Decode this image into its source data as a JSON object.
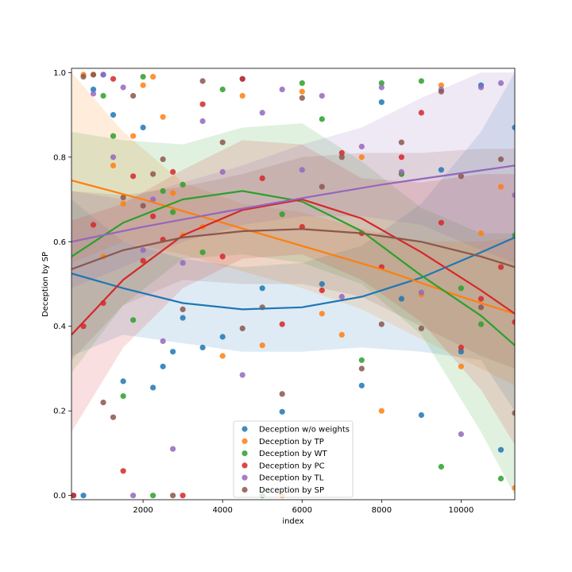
{
  "chart_data": {
    "type": "scatter",
    "xlabel": "index",
    "ylabel": "Deception by SP",
    "xlim": [
      200,
      11350
    ],
    "ylim": [
      -0.01,
      1.01
    ],
    "xticks": [
      2000,
      4000,
      6000,
      8000,
      10000
    ],
    "xtick_labels": [
      "2000",
      "4000",
      "6000",
      "8000",
      "10000"
    ],
    "yticks": [
      0.0,
      0.2,
      0.4,
      0.6,
      0.8,
      1.0
    ],
    "ytick_labels": [
      "0.0",
      "0.2",
      "0.4",
      "0.6",
      "0.8",
      "1.0"
    ],
    "legend_placement": "lower center",
    "series": [
      {
        "name": "Deception w/o weights",
        "color": "#1f77b4",
        "fit": [
          [
            200,
            0.525
          ],
          [
            1500,
            0.49
          ],
          [
            3000,
            0.455
          ],
          [
            4500,
            0.44
          ],
          [
            6000,
            0.445
          ],
          [
            7500,
            0.47
          ],
          [
            9000,
            0.515
          ],
          [
            10500,
            0.575
          ],
          [
            11350,
            0.61
          ]
        ],
        "band": [
          [
            200,
            0.33,
            0.7
          ],
          [
            1500,
            0.38,
            0.6
          ],
          [
            3000,
            0.36,
            0.56
          ],
          [
            4500,
            0.34,
            0.54
          ],
          [
            6000,
            0.34,
            0.55
          ],
          [
            7500,
            0.35,
            0.59
          ],
          [
            9000,
            0.34,
            0.69
          ],
          [
            10500,
            0.32,
            0.86
          ],
          [
            11350,
            0.2,
            1.0
          ]
        ],
        "points": [
          [
            250,
            0.0
          ],
          [
            500,
            0.0
          ],
          [
            750,
            0.96
          ],
          [
            1000,
            0.995
          ],
          [
            1250,
            0.9
          ],
          [
            1500,
            0.27
          ],
          [
            2000,
            0.87
          ],
          [
            2250,
            0.255
          ],
          [
            2500,
            0.305
          ],
          [
            2750,
            0.34
          ],
          [
            3000,
            0.42
          ],
          [
            3500,
            0.35
          ],
          [
            4000,
            0.375
          ],
          [
            4500,
            0.985
          ],
          [
            5000,
            0.49
          ],
          [
            5500,
            0.198
          ],
          [
            6500,
            0.5
          ],
          [
            7500,
            0.26
          ],
          [
            8000,
            0.93
          ],
          [
            8500,
            0.465
          ],
          [
            9000,
            0.19
          ],
          [
            9500,
            0.77
          ],
          [
            10000,
            0.34
          ],
          [
            10500,
            0.97
          ],
          [
            11000,
            0.108
          ],
          [
            11350,
            0.87
          ]
        ]
      },
      {
        "name": "Deception by TP",
        "color": "#ff7f0e",
        "fit": [
          [
            200,
            0.745
          ],
          [
            2000,
            0.7
          ],
          [
            4000,
            0.645
          ],
          [
            6000,
            0.59
          ],
          [
            8000,
            0.535
          ],
          [
            10000,
            0.47
          ],
          [
            11350,
            0.43
          ]
        ],
        "band": [
          [
            200,
            0.55,
            1.0
          ],
          [
            1500,
            0.6,
            0.86
          ],
          [
            3000,
            0.57,
            0.74
          ],
          [
            4500,
            0.53,
            0.69
          ],
          [
            6000,
            0.49,
            0.67
          ],
          [
            7500,
            0.44,
            0.63
          ],
          [
            9000,
            0.37,
            0.6
          ],
          [
            10500,
            0.3,
            0.6
          ],
          [
            11350,
            0.26,
            0.61
          ]
        ],
        "points": [
          [
            500,
            0.995
          ],
          [
            750,
            0.995
          ],
          [
            1000,
            0.565
          ],
          [
            1250,
            0.78
          ],
          [
            1500,
            0.69
          ],
          [
            1750,
            0.85
          ],
          [
            2000,
            0.97
          ],
          [
            2250,
            0.99
          ],
          [
            2500,
            0.895
          ],
          [
            2750,
            0.715
          ],
          [
            3000,
            0.615
          ],
          [
            3500,
            0.635
          ],
          [
            4000,
            0.33
          ],
          [
            4500,
            0.945
          ],
          [
            5000,
            0.355
          ],
          [
            5500,
            0.0
          ],
          [
            6000,
            0.955
          ],
          [
            6500,
            0.43
          ],
          [
            7000,
            0.38
          ],
          [
            7500,
            0.8
          ],
          [
            8000,
            0.2
          ],
          [
            8500,
            0.76
          ],
          [
            9000,
            0.475
          ],
          [
            9500,
            0.97
          ],
          [
            10000,
            0.305
          ],
          [
            10500,
            0.62
          ],
          [
            11000,
            0.73
          ],
          [
            11350,
            0.018
          ]
        ]
      },
      {
        "name": "Deception by WT",
        "color": "#2ca02c",
        "fit": [
          [
            200,
            0.565
          ],
          [
            1500,
            0.645
          ],
          [
            3000,
            0.7
          ],
          [
            4500,
            0.72
          ],
          [
            6000,
            0.695
          ],
          [
            7500,
            0.625
          ],
          [
            9000,
            0.52
          ],
          [
            10500,
            0.425
          ],
          [
            11350,
            0.355
          ]
        ],
        "band": [
          [
            200,
            0.29,
            0.86
          ],
          [
            1500,
            0.45,
            0.84
          ],
          [
            3000,
            0.56,
            0.83
          ],
          [
            4500,
            0.57,
            0.87
          ],
          [
            6000,
            0.55,
            0.88
          ],
          [
            7500,
            0.5,
            0.79
          ],
          [
            9000,
            0.38,
            0.68
          ],
          [
            10500,
            0.15,
            0.62
          ],
          [
            11350,
            0.0,
            0.62
          ]
        ],
        "points": [
          [
            1000,
            0.945
          ],
          [
            1250,
            0.85
          ],
          [
            1500,
            0.235
          ],
          [
            1750,
            0.415
          ],
          [
            2000,
            0.99
          ],
          [
            2250,
            0.0
          ],
          [
            2500,
            0.72
          ],
          [
            2750,
            0.67
          ],
          [
            3000,
            0.735
          ],
          [
            3500,
            0.575
          ],
          [
            4000,
            0.96
          ],
          [
            5000,
            0.0
          ],
          [
            5500,
            0.665
          ],
          [
            6000,
            0.975
          ],
          [
            6500,
            0.89
          ],
          [
            7500,
            0.32
          ],
          [
            8000,
            0.975
          ],
          [
            8500,
            0.76
          ],
          [
            9000,
            0.98
          ],
          [
            9500,
            0.068
          ],
          [
            10000,
            0.49
          ],
          [
            10500,
            0.405
          ],
          [
            11000,
            0.04
          ],
          [
            11350,
            0.615
          ]
        ]
      },
      {
        "name": "Deception by PC",
        "color": "#d62728",
        "fit": [
          [
            200,
            0.38
          ],
          [
            1500,
            0.51
          ],
          [
            3000,
            0.615
          ],
          [
            4500,
            0.675
          ],
          [
            6000,
            0.7
          ],
          [
            7500,
            0.655
          ],
          [
            9000,
            0.575
          ],
          [
            10500,
            0.485
          ],
          [
            11350,
            0.43
          ]
        ],
        "band": [
          [
            200,
            0.15,
            0.65
          ],
          [
            1500,
            0.35,
            0.69
          ],
          [
            3000,
            0.49,
            0.77
          ],
          [
            4500,
            0.56,
            0.84
          ],
          [
            6000,
            0.57,
            0.83
          ],
          [
            7500,
            0.51,
            0.75
          ],
          [
            9000,
            0.41,
            0.74
          ],
          [
            10500,
            0.25,
            0.76
          ],
          [
            11350,
            0.12,
            0.76
          ]
        ],
        "points": [
          [
            250,
            0.0
          ],
          [
            500,
            0.4
          ],
          [
            750,
            0.64
          ],
          [
            1000,
            0.455
          ],
          [
            1250,
            0.985
          ],
          [
            1500,
            0.058
          ],
          [
            1750,
            0.755
          ],
          [
            2000,
            0.555
          ],
          [
            2250,
            0.66
          ],
          [
            2500,
            0.605
          ],
          [
            2750,
            0.765
          ],
          [
            3000,
            0.0
          ],
          [
            3500,
            0.925
          ],
          [
            4000,
            0.565
          ],
          [
            4500,
            0.985
          ],
          [
            5000,
            0.75
          ],
          [
            5500,
            0.405
          ],
          [
            6000,
            0.635
          ],
          [
            6500,
            0.485
          ],
          [
            7000,
            0.81
          ],
          [
            7500,
            0.62
          ],
          [
            8000,
            0.54
          ],
          [
            8500,
            0.8
          ],
          [
            9000,
            0.905
          ],
          [
            9500,
            0.645
          ],
          [
            10000,
            0.35
          ],
          [
            10500,
            0.465
          ],
          [
            11000,
            0.54
          ],
          [
            11350,
            0.41
          ]
        ]
      },
      {
        "name": "Deception by TL",
        "color": "#9467bd",
        "fit": [
          [
            200,
            0.6
          ],
          [
            2000,
            0.635
          ],
          [
            4000,
            0.67
          ],
          [
            6000,
            0.703
          ],
          [
            8000,
            0.735
          ],
          [
            10000,
            0.762
          ],
          [
            11350,
            0.78
          ]
        ],
        "band": [
          [
            200,
            0.49,
            0.72
          ],
          [
            1500,
            0.54,
            0.7
          ],
          [
            3000,
            0.6,
            0.74
          ],
          [
            4500,
            0.64,
            0.78
          ],
          [
            6000,
            0.66,
            0.83
          ],
          [
            7500,
            0.66,
            0.87
          ],
          [
            9000,
            0.64,
            0.94
          ],
          [
            10500,
            0.58,
            1.0
          ],
          [
            11350,
            0.55,
            1.0
          ]
        ],
        "points": [
          [
            750,
            0.95
          ],
          [
            1000,
            0.995
          ],
          [
            1250,
            0.8
          ],
          [
            1500,
            0.965
          ],
          [
            1750,
            0.0
          ],
          [
            2000,
            0.58
          ],
          [
            2250,
            0.7
          ],
          [
            2500,
            0.365
          ],
          [
            2750,
            0.11
          ],
          [
            3000,
            0.55
          ],
          [
            3500,
            0.885
          ],
          [
            4000,
            0.765
          ],
          [
            4500,
            0.285
          ],
          [
            5000,
            0.905
          ],
          [
            5500,
            0.96
          ],
          [
            6000,
            0.77
          ],
          [
            6500,
            0.945
          ],
          [
            7000,
            0.47
          ],
          [
            7500,
            0.825
          ],
          [
            8000,
            0.965
          ],
          [
            8500,
            0.765
          ],
          [
            9000,
            0.48
          ],
          [
            9500,
            0.96
          ],
          [
            10000,
            0.145
          ],
          [
            10500,
            0.965
          ],
          [
            11000,
            0.975
          ],
          [
            11350,
            0.71
          ]
        ]
      },
      {
        "name": "Deception by SP",
        "color": "#8c564b",
        "fit": [
          [
            200,
            0.535
          ],
          [
            1500,
            0.58
          ],
          [
            3000,
            0.61
          ],
          [
            4500,
            0.625
          ],
          [
            6000,
            0.63
          ],
          [
            7500,
            0.62
          ],
          [
            9000,
            0.6
          ],
          [
            10500,
            0.565
          ],
          [
            11350,
            0.54
          ]
        ],
        "band": [
          [
            200,
            0.32,
            0.72
          ],
          [
            1500,
            0.45,
            0.71
          ],
          [
            3000,
            0.51,
            0.73
          ],
          [
            4500,
            0.5,
            0.76
          ],
          [
            6000,
            0.5,
            0.8
          ],
          [
            7500,
            0.47,
            0.81
          ],
          [
            9000,
            0.4,
            0.81
          ],
          [
            10500,
            0.33,
            0.82
          ],
          [
            11350,
            0.3,
            0.82
          ]
        ],
        "points": [
          [
            500,
            0.99
          ],
          [
            750,
            0.995
          ],
          [
            1000,
            0.22
          ],
          [
            1250,
            0.185
          ],
          [
            1500,
            0.705
          ],
          [
            1750,
            0.945
          ],
          [
            2000,
            0.685
          ],
          [
            2250,
            0.76
          ],
          [
            2500,
            0.795
          ],
          [
            2750,
            0.0
          ],
          [
            3000,
            0.44
          ],
          [
            3500,
            0.98
          ],
          [
            4000,
            0.835
          ],
          [
            4500,
            0.395
          ],
          [
            5000,
            0.445
          ],
          [
            5500,
            0.24
          ],
          [
            6000,
            0.94
          ],
          [
            6500,
            0.73
          ],
          [
            7000,
            0.8
          ],
          [
            7500,
            0.3
          ],
          [
            8000,
            0.405
          ],
          [
            8500,
            0.835
          ],
          [
            9000,
            0.395
          ],
          [
            9500,
            0.955
          ],
          [
            10000,
            0.755
          ],
          [
            10500,
            0.445
          ],
          [
            11000,
            0.795
          ],
          [
            11350,
            0.195
          ]
        ]
      }
    ]
  }
}
